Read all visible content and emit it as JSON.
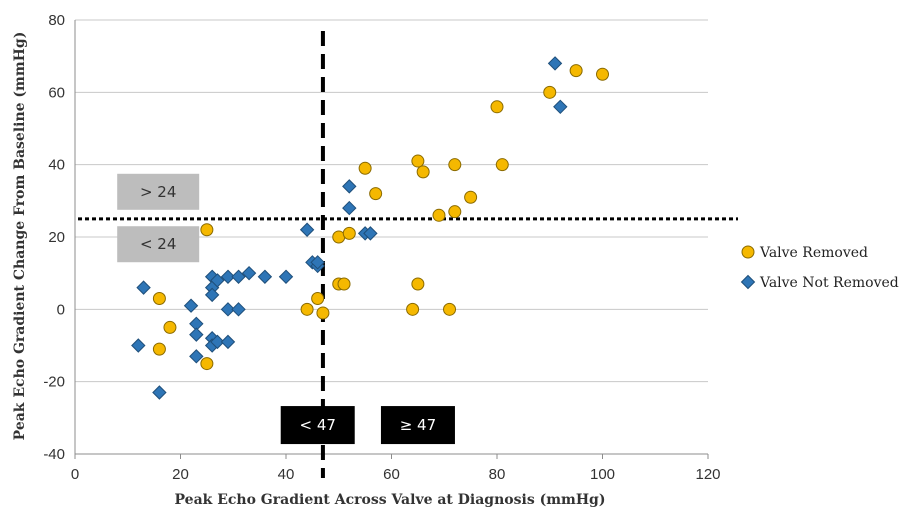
{
  "chart_data": {
    "type": "scatter",
    "xlabel": "Peak Echo Gradient Across Valve at Diagnosis (mmHg)",
    "ylabel": "Peak Echo Gradient Change From Baseline (mmHg)",
    "xlim": [
      0,
      120
    ],
    "ylim": [
      -40,
      80
    ],
    "xticks": [
      "0",
      "20",
      "40",
      "60",
      "80",
      "100",
      "120"
    ],
    "yticks": [
      "-40",
      "-20",
      "0",
      "20",
      "40",
      "60",
      "80"
    ],
    "grid": true,
    "legend_position": "right",
    "thresholds": {
      "x": 47,
      "y": 25
    },
    "annotations": [
      {
        "text": "> 24",
        "x": 8,
        "y": 32.5,
        "style": "gray"
      },
      {
        "text": "< 24",
        "x": 8,
        "y": 18,
        "style": "gray"
      },
      {
        "text": "< 47",
        "x": 39,
        "y": -32,
        "style": "black"
      },
      {
        "text": "≥ 47",
        "x": 58,
        "y": -32,
        "style": "black"
      }
    ],
    "series": [
      {
        "name": "Valve Removed",
        "marker": "circle",
        "color": "#F5B800",
        "points": [
          [
            16,
            3
          ],
          [
            16,
            -11
          ],
          [
            18,
            -5
          ],
          [
            25,
            22
          ],
          [
            25,
            -15
          ],
          [
            44,
            0
          ],
          [
            46,
            3
          ],
          [
            47,
            -1
          ],
          [
            50,
            20
          ],
          [
            50,
            7
          ],
          [
            51,
            7
          ],
          [
            52,
            21
          ],
          [
            55,
            39
          ],
          [
            57,
            32
          ],
          [
            64,
            0
          ],
          [
            65,
            41
          ],
          [
            65,
            7
          ],
          [
            66,
            38
          ],
          [
            69,
            26
          ],
          [
            71,
            0
          ],
          [
            72,
            40
          ],
          [
            72,
            27
          ],
          [
            75,
            31
          ],
          [
            80,
            56
          ],
          [
            81,
            40
          ],
          [
            90,
            60
          ],
          [
            95,
            66
          ],
          [
            100,
            65
          ]
        ]
      },
      {
        "name": "Valve Not Removed",
        "marker": "diamond",
        "color": "#2E75B6",
        "points": [
          [
            12,
            -10
          ],
          [
            13,
            6
          ],
          [
            16,
            -23
          ],
          [
            22,
            1
          ],
          [
            23,
            -4
          ],
          [
            23,
            -7
          ],
          [
            23,
            -13
          ],
          [
            26,
            9
          ],
          [
            26,
            6
          ],
          [
            26,
            4
          ],
          [
            26,
            -8
          ],
          [
            26,
            -10
          ],
          [
            27,
            8
          ],
          [
            27,
            -9
          ],
          [
            29,
            9
          ],
          [
            29,
            0
          ],
          [
            29,
            -9
          ],
          [
            31,
            9
          ],
          [
            31,
            0
          ],
          [
            33,
            10
          ],
          [
            36,
            9
          ],
          [
            40,
            9
          ],
          [
            44,
            22
          ],
          [
            45,
            13
          ],
          [
            46,
            12
          ],
          [
            46,
            13
          ],
          [
            52,
            34
          ],
          [
            52,
            28
          ],
          [
            55,
            21
          ],
          [
            56,
            21
          ],
          [
            91,
            68
          ],
          [
            92,
            56
          ]
        ]
      }
    ]
  }
}
